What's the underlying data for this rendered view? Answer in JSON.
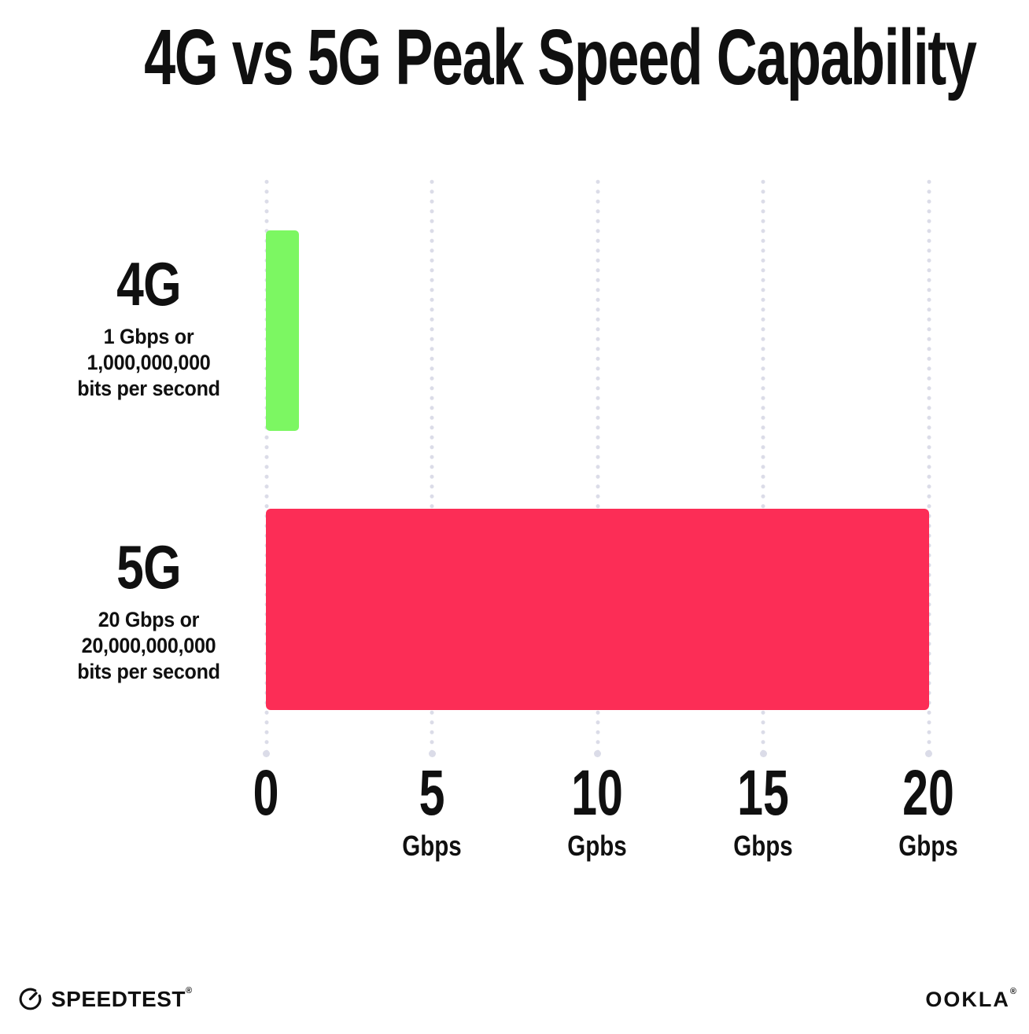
{
  "title": "4G vs 5G Peak Speed Capability",
  "chart_data": {
    "type": "bar",
    "orientation": "horizontal",
    "title": "4G vs 5G Peak Speed Capability",
    "categories": [
      "4G",
      "5G"
    ],
    "values": [
      1,
      20
    ],
    "value_unit": "Gbps",
    "value_descriptions": [
      "1 Gbps or 1,000,000,000 bits per second",
      "20 Gbps or 20,000,000,000 bits per second"
    ],
    "bar_colors": [
      "#7CF762",
      "#FC2D56"
    ],
    "xlim": [
      0,
      20
    ],
    "x_ticks": [
      0,
      5,
      10,
      15,
      20
    ],
    "x_tick_unit_labels": [
      "",
      "Gbps",
      "Gpbs",
      "Gbps",
      "Gbps"
    ],
    "grid": "dotted-vertical",
    "legend": "none"
  },
  "rows": [
    {
      "heading": "4G",
      "sublabel": [
        "1 Gbps or",
        "1,000,000,000",
        "bits per second"
      ]
    },
    {
      "heading": "5G",
      "sublabel": [
        "20 Gbps or",
        "20,000,000,000",
        "bits per second"
      ]
    }
  ],
  "x_axis": {
    "ticks": [
      {
        "label": "0",
        "unit": ""
      },
      {
        "label": "5",
        "unit": "Gbps"
      },
      {
        "label": "10",
        "unit": "Gpbs"
      },
      {
        "label": "15",
        "unit": "Gbps"
      },
      {
        "label": "20",
        "unit": "Gbps"
      }
    ]
  },
  "footer": {
    "speedtest_label": "SPEEDTEST",
    "ookla_label": "OOKLA",
    "trademark": "®"
  },
  "colors": {
    "background": "#FFFFFF",
    "text": "#101010",
    "grid_dot": "#DBDCE8"
  }
}
